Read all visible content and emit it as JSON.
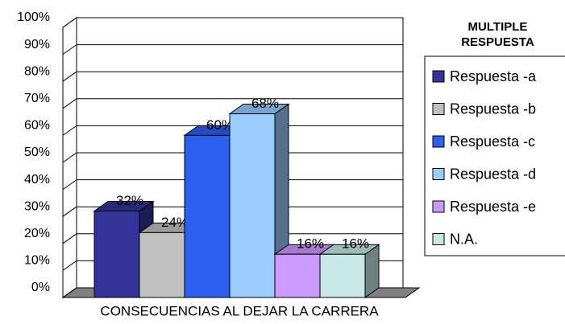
{
  "chart_data": {
    "type": "bar3d",
    "x_label": "CONSECUENCIAS AL DEJAR LA CARRERA",
    "legend_title": "MULTIPLE RESPUESTA",
    "legend": "right",
    "grid": true,
    "ylim": [
      0,
      100
    ],
    "yticks": [
      {
        "value": 0,
        "label": "0%"
      },
      {
        "value": 10,
        "label": "10%"
      },
      {
        "value": 20,
        "label": "20%"
      },
      {
        "value": 30,
        "label": "30%"
      },
      {
        "value": 40,
        "label": "40%"
      },
      {
        "value": 50,
        "label": "50%"
      },
      {
        "value": 60,
        "label": "60%"
      },
      {
        "value": 70,
        "label": "70%"
      },
      {
        "value": 80,
        "label": "80%"
      },
      {
        "value": 90,
        "label": "90%"
      },
      {
        "value": 100,
        "label": "100%"
      }
    ],
    "series": [
      {
        "name": "Respuesta -a",
        "color": "#333399",
        "values": [
          32
        ],
        "value_labels": [
          "32%"
        ]
      },
      {
        "name": "Respuesta -b",
        "color": "#c0c0c0",
        "values": [
          24
        ],
        "value_labels": [
          "24%"
        ]
      },
      {
        "name": "Respuesta -c",
        "color": "#2a5ff0",
        "values": [
          60
        ],
        "value_labels": [
          "60%"
        ]
      },
      {
        "name": "Respuesta -d",
        "color": "#99ccff",
        "values": [
          68
        ],
        "value_labels": [
          "68%"
        ]
      },
      {
        "name": "Respuesta -e",
        "color": "#cc99ff",
        "values": [
          16
        ],
        "value_labels": [
          "16%"
        ]
      },
      {
        "name": "N.A.",
        "color": "#c8e8e8",
        "values": [
          16
        ],
        "value_labels": [
          "16%"
        ]
      }
    ]
  }
}
